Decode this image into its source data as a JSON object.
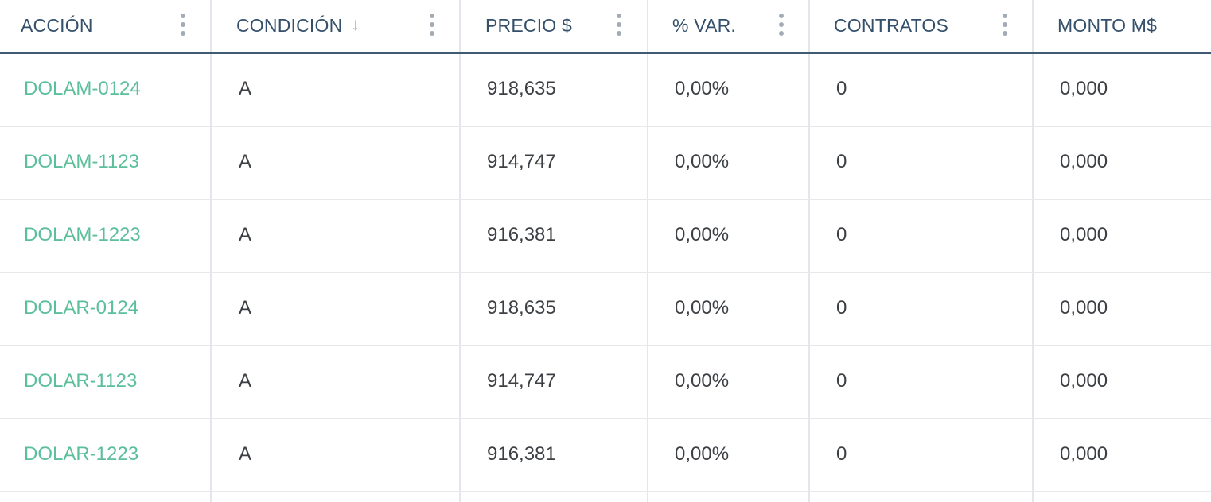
{
  "columns": [
    {
      "label": "ACCIÓN"
    },
    {
      "label": "CONDICIÓN",
      "sort_icon": "arrow-down-icon",
      "sort_glyph": "↓"
    },
    {
      "label": "PRECIO $"
    },
    {
      "label": "% VAR."
    },
    {
      "label": "CONTRATOS"
    },
    {
      "label": "MONTO M$"
    }
  ],
  "rows": [
    {
      "accion": "DOLAM-0124",
      "condicion": "A",
      "precio": "918,635",
      "var": "0,00%",
      "contratos": "0",
      "monto": "0,000"
    },
    {
      "accion": "DOLAM-1123",
      "condicion": "A",
      "precio": "914,747",
      "var": "0,00%",
      "contratos": "0",
      "monto": "0,000"
    },
    {
      "accion": "DOLAM-1223",
      "condicion": "A",
      "precio": "916,381",
      "var": "0,00%",
      "contratos": "0",
      "monto": "0,000"
    },
    {
      "accion": "DOLAR-0124",
      "condicion": "A",
      "precio": "918,635",
      "var": "0,00%",
      "contratos": "0",
      "monto": "0,000"
    },
    {
      "accion": "DOLAR-1123",
      "condicion": "A",
      "precio": "914,747",
      "var": "0,00%",
      "contratos": "0",
      "monto": "0,000"
    },
    {
      "accion": "DOLAR-1223",
      "condicion": "A",
      "precio": "916,381",
      "var": "0,00%",
      "contratos": "0",
      "monto": "0,000"
    }
  ],
  "colors": {
    "ticker": "#5cbf9b",
    "header_text": "#35506b",
    "header_border": "#3f5a73",
    "grid": "#e3e6ea"
  }
}
